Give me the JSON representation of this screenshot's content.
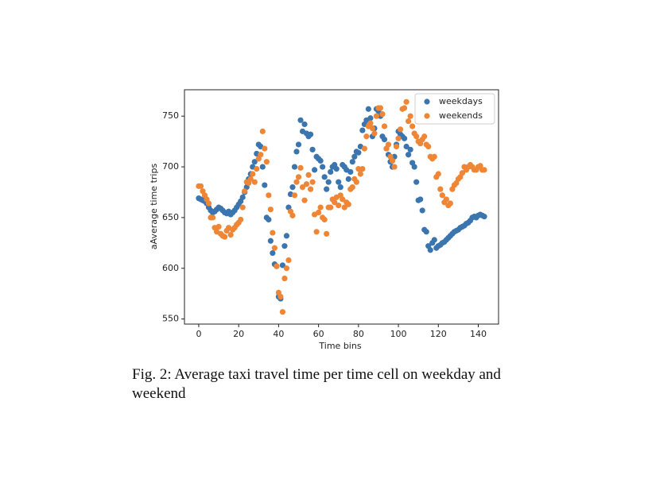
{
  "chart_data": {
    "type": "scatter",
    "xlabel": "Time bins",
    "ylabel": "aAverage time trips",
    "xlim": [
      -7.15,
      150.15
    ],
    "ylim": [
      545,
      776
    ],
    "xticks": [
      0,
      20,
      40,
      60,
      80,
      100,
      120,
      140
    ],
    "yticks": [
      550,
      600,
      650,
      700,
      750
    ],
    "legend": "upper right",
    "x": [
      0,
      1,
      2,
      3,
      4,
      5,
      6,
      7,
      8,
      9,
      10,
      11,
      12,
      13,
      14,
      15,
      16,
      17,
      18,
      19,
      20,
      21,
      22,
      23,
      24,
      25,
      26,
      27,
      28,
      29,
      30,
      31,
      32,
      33,
      34,
      35,
      36,
      37,
      38,
      39,
      40,
      41,
      42,
      43,
      44,
      45,
      46,
      47,
      48,
      49,
      50,
      51,
      52,
      53,
      54,
      55,
      56,
      57,
      58,
      59,
      60,
      61,
      62,
      63,
      64,
      65,
      66,
      67,
      68,
      69,
      70,
      71,
      72,
      73,
      74,
      75,
      76,
      77,
      78,
      79,
      80,
      81,
      82,
      83,
      84,
      85,
      86,
      87,
      88,
      89,
      90,
      91,
      92,
      93,
      94,
      95,
      96,
      97,
      98,
      99,
      100,
      101,
      102,
      103,
      104,
      105,
      106,
      107,
      108,
      109,
      110,
      111,
      112,
      113,
      114,
      115,
      116,
      117,
      118,
      119,
      120,
      121,
      122,
      123,
      124,
      125,
      126,
      127,
      128,
      129,
      130,
      131,
      132,
      133,
      134,
      135,
      136,
      137,
      138,
      139,
      140,
      141,
      142,
      143
    ],
    "series": [
      {
        "name": "weekdays",
        "color": "#3b75af",
        "values": [
          669,
          668,
          667,
          666,
          664,
          660,
          657,
          655,
          656,
          658,
          660,
          659,
          657,
          655,
          654,
          656,
          653,
          655,
          657,
          660,
          663,
          666,
          670,
          675,
          680,
          688,
          693,
          700,
          705,
          713,
          722,
          720,
          700,
          682,
          650,
          648,
          627,
          615,
          604,
          602,
          572,
          570,
          603,
          622,
          632,
          660,
          673,
          680,
          700,
          715,
          722,
          746,
          735,
          742,
          733,
          730,
          732,
          717,
          697,
          710,
          708,
          706,
          700,
          690,
          678,
          685,
          695,
          700,
          702,
          698,
          685,
          680,
          702,
          700,
          697,
          688,
          695,
          705,
          710,
          715,
          714,
          720,
          736,
          742,
          746,
          757,
          748,
          730,
          738,
          757,
          755,
          750,
          730,
          727,
          718,
          712,
          705,
          700,
          710,
          722,
          735,
          732,
          730,
          728,
          720,
          712,
          717,
          704,
          700,
          685,
          667,
          668,
          657,
          638,
          636,
          622,
          618,
          625,
          628,
          620,
          622,
          623,
          625,
          626,
          628,
          630,
          632,
          634,
          636,
          637,
          638,
          640,
          641,
          642,
          644,
          645,
          647,
          650,
          651,
          650,
          652,
          653,
          652,
          651
        ]
      },
      {
        "name": "weekends",
        "color": "#ef8636",
        "values": [
          681,
          681,
          676,
          672,
          668,
          664,
          650,
          650,
          640,
          636,
          641,
          634,
          632,
          631,
          637,
          640,
          633,
          638,
          640,
          643,
          645,
          648,
          660,
          676,
          685,
          684,
          688,
          693,
          685,
          698,
          708,
          712,
          735,
          718,
          705,
          672,
          658,
          635,
          620,
          602,
          576,
          572,
          557,
          590,
          600,
          608,
          656,
          652,
          672,
          685,
          690,
          699,
          680,
          667,
          683,
          692,
          678,
          685,
          653,
          636,
          655,
          660,
          650,
          648,
          634,
          660,
          660,
          668,
          665,
          670,
          662,
          672,
          668,
          660,
          665,
          663,
          678,
          680,
          688,
          685,
          698,
          693,
          698,
          718,
          730,
          740,
          743,
          738,
          733,
          750,
          758,
          758,
          752,
          740,
          718,
          722,
          710,
          706,
          700,
          720,
          728,
          737,
          757,
          758,
          764,
          745,
          750,
          740,
          733,
          730,
          725,
          723,
          727,
          730,
          722,
          720,
          710,
          708,
          710,
          690,
          693,
          678,
          672,
          665,
          668,
          662,
          664,
          678,
          682,
          684,
          688,
          690,
          694,
          700,
          697,
          700,
          702,
          700,
          697,
          697,
          700,
          701,
          697,
          697
        ]
      }
    ]
  },
  "caption": "Fig. 2: Average taxi travel time per time cell on weekday and weekend"
}
